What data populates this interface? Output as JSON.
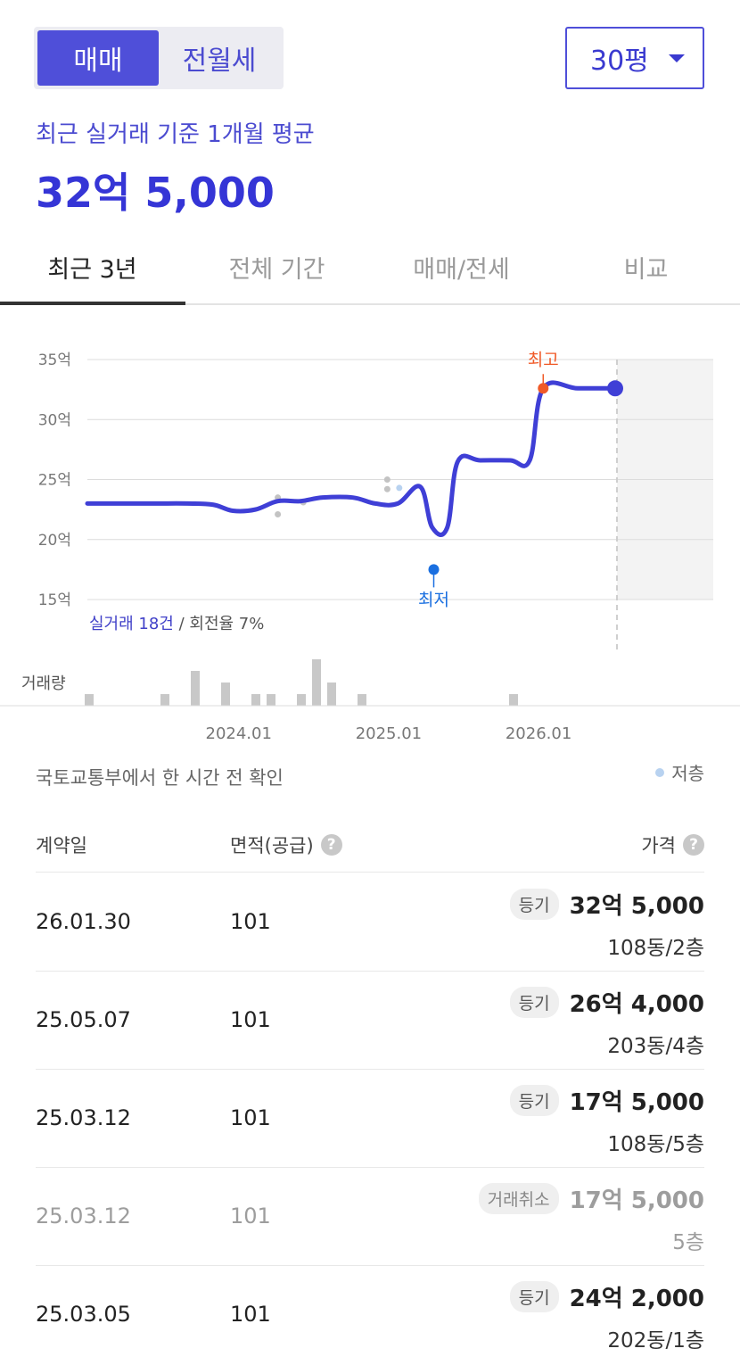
{
  "trade_toggle": {
    "selected": "매매",
    "other": "전월세"
  },
  "area_select": {
    "value": "30평"
  },
  "summary": {
    "label": "최근 실거래 기준 1개월 평균",
    "price": "32억 5,000"
  },
  "tabs": [
    {
      "label": "최근 3년",
      "active": true
    },
    {
      "label": "전체 기간",
      "active": false
    },
    {
      "label": "매매/전세",
      "active": false
    },
    {
      "label": "비교",
      "active": false
    }
  ],
  "chart_data": {
    "type": "line",
    "y_unit": "억",
    "yticks": [
      "35억",
      "30억",
      "25억",
      "20억",
      "15억"
    ],
    "ylim": [
      15,
      35
    ],
    "xticks": [
      "2024.01",
      "2025.01",
      "2026.01"
    ],
    "series": [
      {
        "values": [
          [
            2023.08,
            23.0
          ],
          [
            2023.5,
            23.0
          ],
          [
            2023.75,
            23.0
          ],
          [
            2023.92,
            22.9
          ],
          [
            2024.05,
            22.4
          ],
          [
            2024.2,
            22.5
          ],
          [
            2024.35,
            23.2
          ],
          [
            2024.5,
            23.2
          ],
          [
            2024.65,
            23.5
          ],
          [
            2024.85,
            23.5
          ],
          [
            2025.0,
            23.0
          ],
          [
            2025.15,
            23.0
          ],
          [
            2025.3,
            24.4
          ],
          [
            2025.38,
            21.0
          ],
          [
            2025.48,
            21.0
          ],
          [
            2025.55,
            26.5
          ],
          [
            2025.7,
            26.6
          ],
          [
            2025.9,
            26.6
          ],
          [
            2026.03,
            26.6
          ],
          [
            2026.12,
            32.6
          ],
          [
            2026.35,
            32.6
          ],
          [
            2026.6,
            32.6
          ]
        ]
      }
    ],
    "scatter_points": [
      [
        2024.35,
        23.5
      ],
      [
        2024.35,
        22.1
      ],
      [
        2024.52,
        23.1
      ],
      [
        2025.08,
        25.0
      ],
      [
        2025.08,
        24.2
      ]
    ],
    "low_floor_points": [
      [
        2025.16,
        24.3
      ]
    ],
    "annotations": {
      "high_label": "최고",
      "low_label": "최저",
      "high_value": 32.6,
      "low_value": 17.5
    },
    "volume_label": "거래량",
    "volume": [
      1,
      0,
      0,
      0,
      0,
      1,
      0,
      3,
      0,
      2,
      0,
      1,
      1,
      0,
      1,
      4,
      2,
      0,
      1,
      0,
      0,
      0,
      0,
      0,
      0,
      0,
      0,
      0,
      1,
      0,
      0,
      0,
      0,
      0,
      0,
      0
    ],
    "stats": {
      "count_text": "실거래 18건",
      "turnover_text": "/ 회전율 7%"
    },
    "colors": {
      "line": "#3f3fd6",
      "high": "#f05a28",
      "low": "#1a6fe0",
      "scatter": "#c3c3c3",
      "low_floor": "#b8d2f0",
      "volume": "#c8c8c8"
    }
  },
  "source_note": "국토교통부에서 한 시간 전 확인",
  "legend_low_floor": "저층",
  "table": {
    "headers": {
      "date": "계약일",
      "area": "면적(공급)",
      "price": "가격"
    },
    "help_icon_glyph": "?",
    "rows": [
      {
        "date": "26.01.30",
        "area": "101",
        "badge": "등기",
        "price": "32억 5,000",
        "unit": "108동/2층",
        "cancelled": false
      },
      {
        "date": "25.05.07",
        "area": "101",
        "badge": "등기",
        "price": "26억 4,000",
        "unit": "203동/4층",
        "cancelled": false
      },
      {
        "date": "25.03.12",
        "area": "101",
        "badge": "등기",
        "price": "17억 5,000",
        "unit": "108동/5층",
        "cancelled": false
      },
      {
        "date": "25.03.12",
        "area": "101",
        "badge": "거래취소",
        "price": "17억 5,000",
        "unit": "5층",
        "cancelled": true
      },
      {
        "date": "25.03.05",
        "area": "101",
        "badge": "등기",
        "price": "24억 2,000",
        "unit": "202동/1층",
        "cancelled": false
      }
    ]
  }
}
